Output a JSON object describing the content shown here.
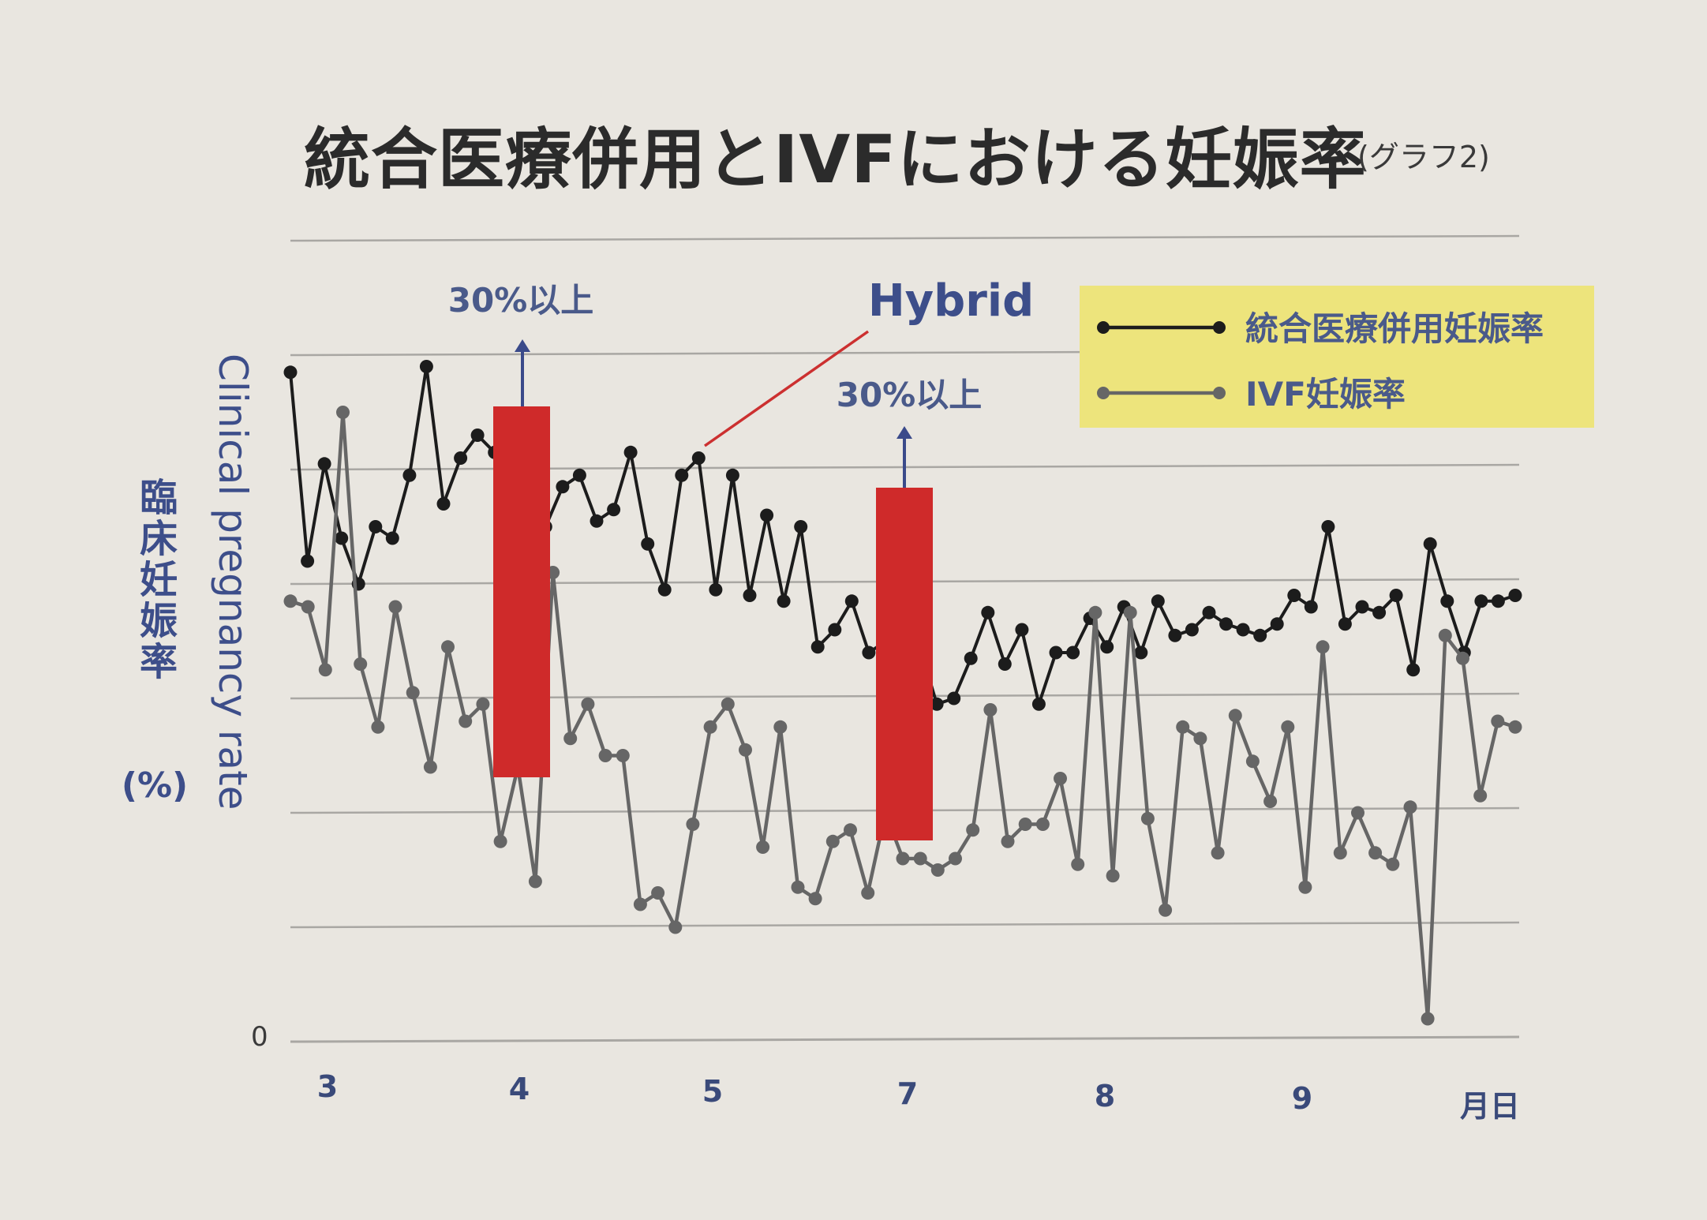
{
  "title": "統合医療併用とIVFにおける妊娠率",
  "subtitle": "(グラフ2)",
  "chart_data": {
    "type": "line",
    "y_label_en": "Clinical pregnancy rate",
    "y_label_ja": "臨床妊娠率",
    "y_unit": "(%)",
    "y_tick_labels": [
      "0"
    ],
    "x_tick_labels": [
      "3",
      "4",
      "5",
      "7",
      "8",
      "9"
    ],
    "x_axis_label": "月日",
    "grid": true,
    "legend_position": "top-right",
    "legend_bg_color": "#ede47c",
    "series": [
      {
        "name": "統合医療併用妊娠率",
        "color": "#1c1c1c",
        "values": [
          5.85,
          4.2,
          5.05,
          4.4,
          4.0,
          4.5,
          4.4,
          4.95,
          5.9,
          4.7,
          5.1,
          5.3,
          5.15,
          5.2,
          5.05,
          4.5,
          4.85,
          4.95,
          4.55,
          4.65,
          5.15,
          4.35,
          3.95,
          4.95,
          5.1,
          3.95,
          4.95,
          3.9,
          4.6,
          3.85,
          4.5,
          3.45,
          3.6,
          3.85,
          3.4,
          3.5,
          3.55,
          3.45,
          2.95,
          3.0,
          3.35,
          3.75,
          3.3,
          3.6,
          2.95,
          3.4,
          3.4,
          3.7,
          3.45,
          3.8,
          3.4,
          3.85,
          3.55,
          3.6,
          3.75,
          3.65,
          3.6,
          3.55,
          3.65,
          3.9,
          3.8,
          4.5,
          3.65,
          3.8,
          3.75,
          3.9,
          3.25,
          4.35,
          3.85,
          3.4,
          3.85,
          3.85,
          3.9
        ]
      },
      {
        "name": "IVF妊娠率",
        "color": "#666666",
        "values": [
          3.85,
          3.8,
          3.25,
          5.5,
          3.3,
          2.75,
          3.8,
          3.05,
          2.4,
          3.45,
          2.8,
          2.95,
          1.75,
          2.4,
          1.4,
          4.1,
          2.65,
          2.95,
          2.5,
          2.5,
          1.2,
          1.3,
          1.0,
          1.9,
          2.75,
          2.95,
          2.55,
          1.7,
          2.75,
          1.35,
          1.25,
          1.75,
          1.85,
          1.3,
          2.0,
          1.6,
          1.6,
          1.5,
          1.6,
          1.85,
          2.9,
          1.75,
          1.9,
          1.9,
          2.3,
          1.55,
          3.75,
          1.45,
          3.75,
          1.95,
          1.15,
          2.75,
          2.65,
          1.65,
          2.85,
          2.45,
          2.1,
          2.75,
          1.35,
          3.45,
          1.65,
          2.0,
          1.65,
          1.55,
          2.05,
          0.2,
          3.55,
          3.35,
          2.15,
          2.8,
          2.75
        ]
      }
    ],
    "annotations": {
      "bar_labels": [
        "30%以上",
        "30%以上"
      ],
      "hybrid_label": "Hybrid",
      "bar_color": "#cf2a2a",
      "arrow_color": "#3a4a8a"
    }
  }
}
